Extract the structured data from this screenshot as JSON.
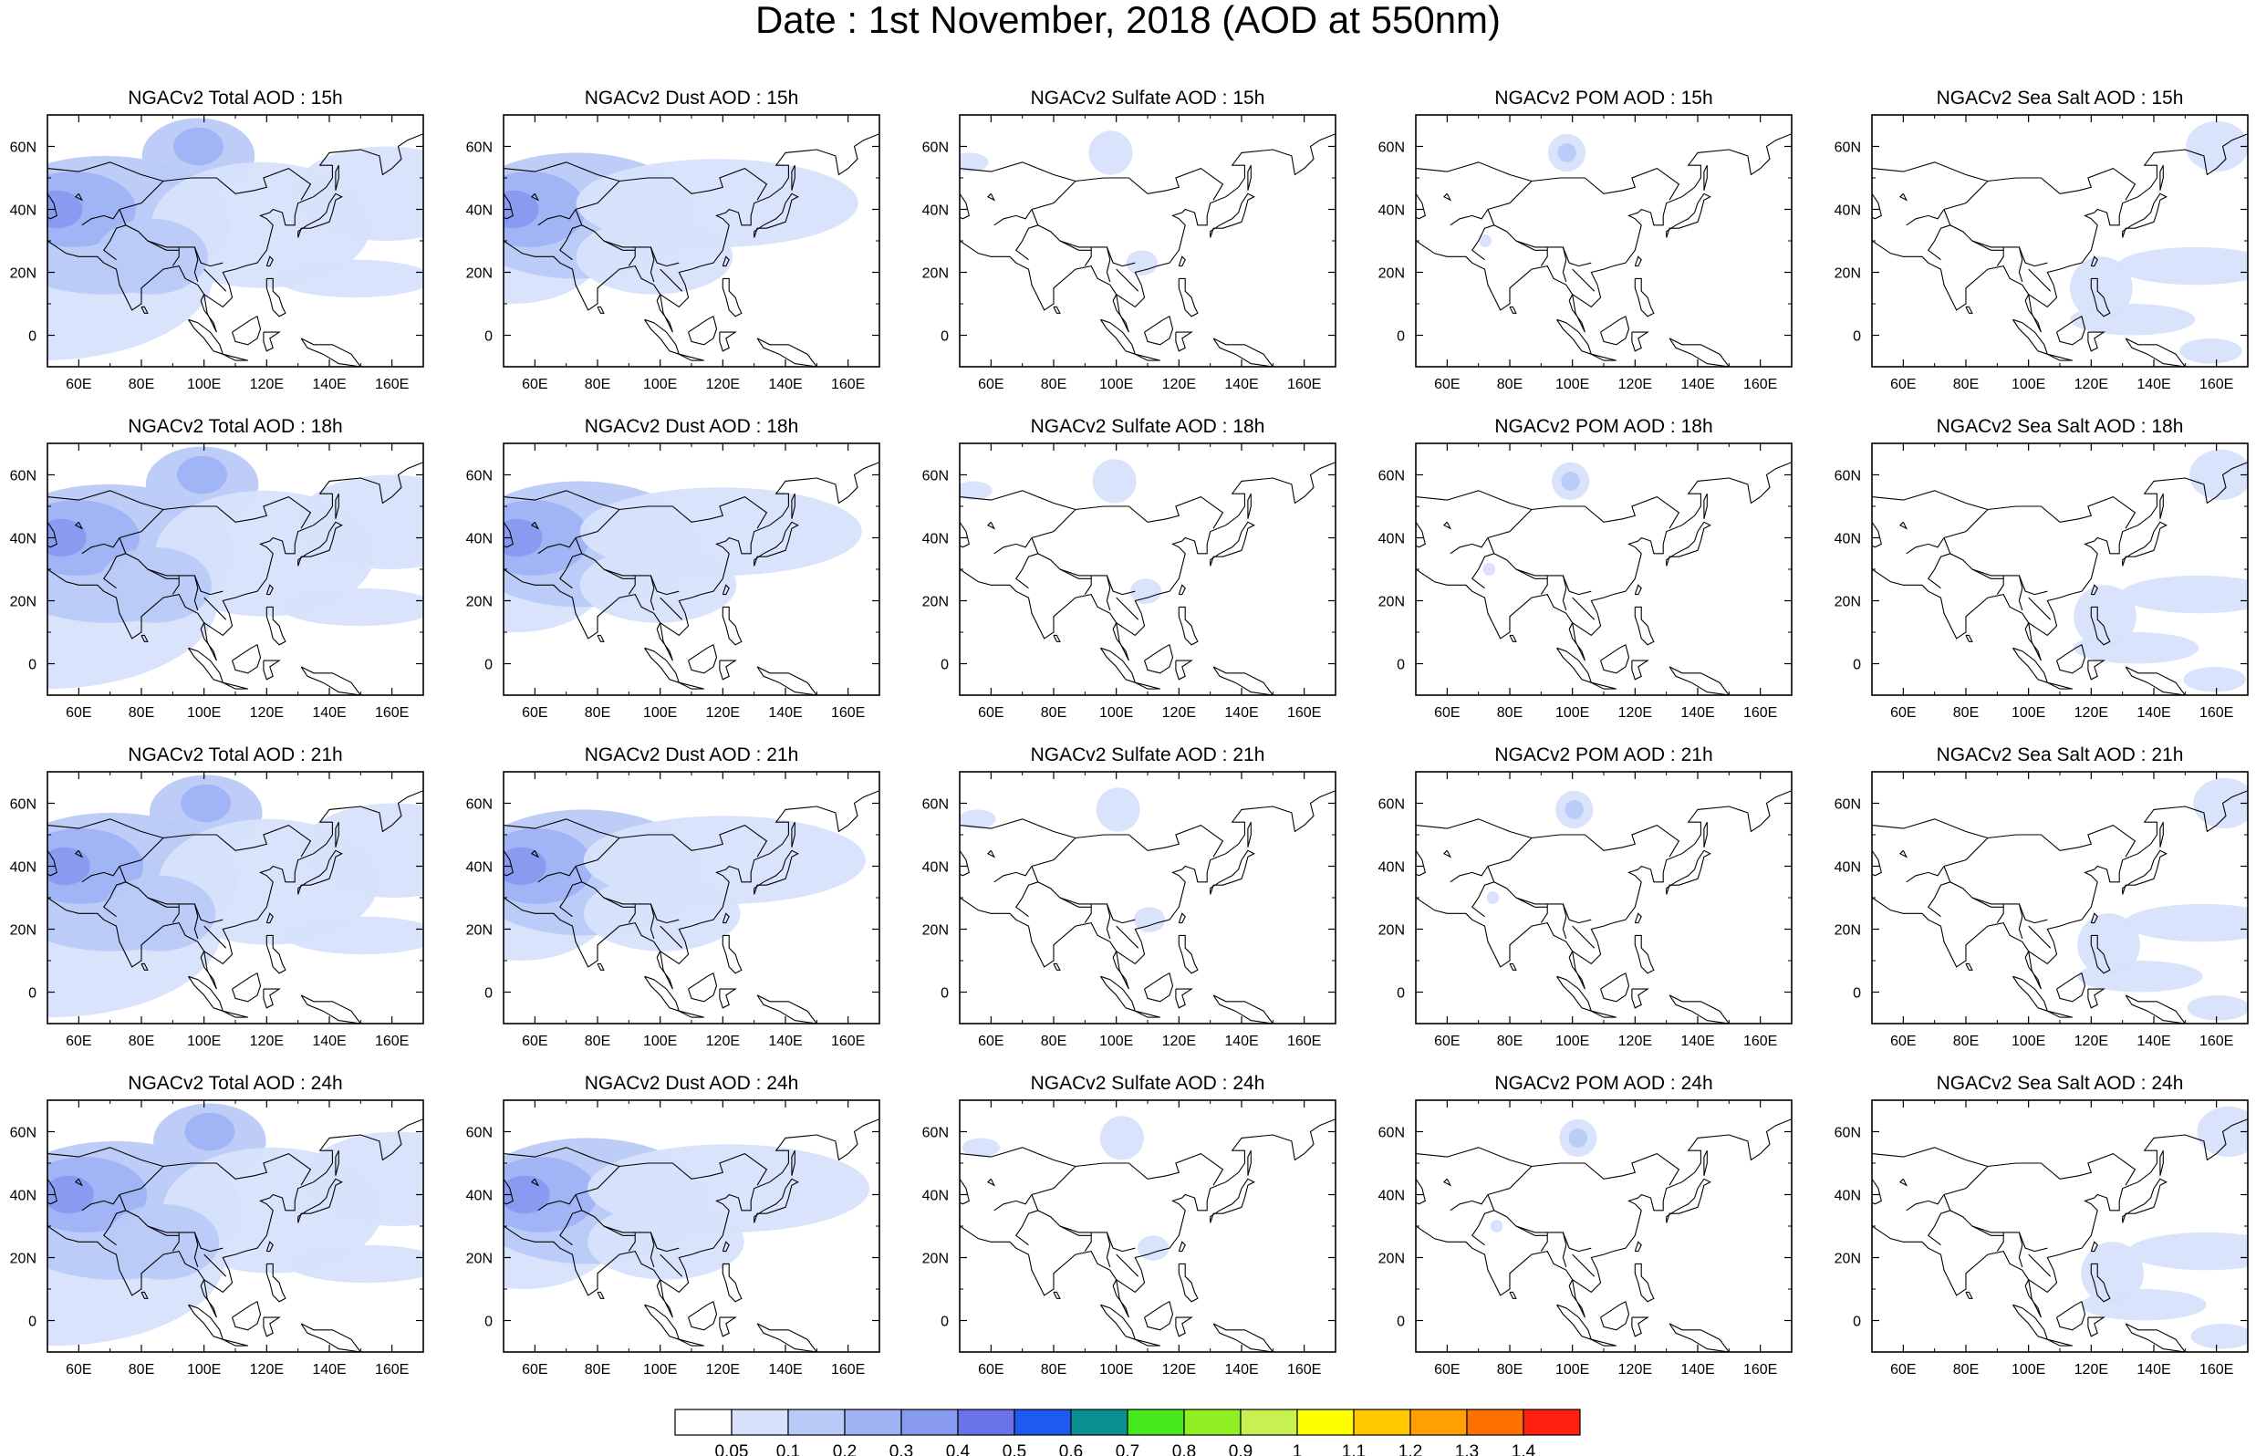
{
  "figure": {
    "title": "Date : 1st November, 2018 (AOD at 550nm)"
  },
  "axes": {
    "x_ticks": [
      "60E",
      "80E",
      "100E",
      "120E",
      "140E",
      "160E"
    ],
    "y_ticks": [
      "60N",
      "40N",
      "20N",
      "0"
    ],
    "lon_range": [
      50,
      170
    ],
    "lat_range": [
      -10,
      70
    ]
  },
  "species": [
    {
      "key": "total",
      "colors": 0
    },
    {
      "key": "dust",
      "colors": 0
    },
    {
      "key": "sulfate",
      "colors": 0
    },
    {
      "key": "pom",
      "colors": 0
    },
    {
      "key": "seasalt",
      "colors": 0
    }
  ],
  "panels": [
    [
      "NGACv2 Total AOD : 15h",
      "NGACv2 Dust AOD : 15h",
      "NGACv2 Sulfate AOD : 15h",
      "NGACv2 POM AOD : 15h",
      "NGACv2 Sea Salt AOD : 15h"
    ],
    [
      "NGACv2 Total AOD : 18h",
      "NGACv2 Dust AOD : 18h",
      "NGACv2 Sulfate AOD : 18h",
      "NGACv2 POM AOD : 18h",
      "NGACv2 Sea Salt AOD : 18h"
    ],
    [
      "NGACv2 Total AOD : 21h",
      "NGACv2 Dust AOD : 21h",
      "NGACv2 Sulfate AOD : 21h",
      "NGACv2 POM AOD : 21h",
      "NGACv2 Sea Salt AOD : 21h"
    ],
    [
      "NGACv2 Total AOD : 24h",
      "NGACv2 Dust AOD : 24h",
      "NGACv2 Sulfate AOD : 24h",
      "NGACv2 POM AOD : 24h",
      "NGACv2 Sea Salt  AOD : 24h"
    ]
  ],
  "colorbar": {
    "labels": [
      "0.05",
      "0.1",
      "0.2",
      "0.3",
      "0.4",
      "0.5",
      "0.6",
      "0.7",
      "0.8",
      "0.9",
      "1",
      "1.1",
      "1.2",
      "1.3",
      "1.4"
    ],
    "colors": [
      "#ffffff",
      "#d7e1fb",
      "#b9caf8",
      "#9fb3f5",
      "#8899f0",
      "#6a72e8",
      "#1e5af0",
      "#0a9090",
      "#48e81e",
      "#90ee22",
      "#c8f050",
      "#ffff00",
      "#ffc800",
      "#ffa000",
      "#ff7000",
      "#ff2010"
    ]
  },
  "plumes": {
    "total": [
      {
        "lon": 50,
        "lat": 20,
        "rx": 55,
        "ry": 28,
        "c": 1
      },
      {
        "lon": 70,
        "lat": 35,
        "rx": 40,
        "ry": 22,
        "c": 2
      },
      {
        "lon": 60,
        "lat": 40,
        "rx": 20,
        "ry": 12,
        "c": 3
      },
      {
        "lon": 55,
        "lat": 40,
        "rx": 8,
        "ry": 6,
        "c": 4
      },
      {
        "lon": 100,
        "lat": 57,
        "rx": 18,
        "ry": 12,
        "c": 2
      },
      {
        "lon": 100,
        "lat": 60,
        "rx": 8,
        "ry": 6,
        "c": 3
      },
      {
        "lon": 120,
        "lat": 35,
        "rx": 35,
        "ry": 20,
        "c": 1
      },
      {
        "lon": 160,
        "lat": 45,
        "rx": 30,
        "ry": 15,
        "c": 1
      },
      {
        "lon": 150,
        "lat": 18,
        "rx": 25,
        "ry": 6,
        "c": 1
      },
      {
        "lon": 85,
        "lat": 25,
        "rx": 18,
        "ry": 12,
        "c": 2
      }
    ],
    "dust": [
      {
        "lon": 55,
        "lat": 30,
        "rx": 30,
        "ry": 20,
        "c": 1
      },
      {
        "lon": 75,
        "lat": 38,
        "rx": 38,
        "ry": 20,
        "c": 2
      },
      {
        "lon": 60,
        "lat": 40,
        "rx": 18,
        "ry": 12,
        "c": 3
      },
      {
        "lon": 55,
        "lat": 40,
        "rx": 8,
        "ry": 6,
        "c": 4
      },
      {
        "lon": 120,
        "lat": 42,
        "rx": 45,
        "ry": 14,
        "c": 1
      },
      {
        "lon": 100,
        "lat": 25,
        "rx": 25,
        "ry": 12,
        "c": 1
      }
    ],
    "sulfate": [
      {
        "lon": 100,
        "lat": 58,
        "rx": 7,
        "ry": 7,
        "c": 1
      },
      {
        "lon": 55,
        "lat": 55,
        "rx": 6,
        "ry": 3,
        "c": 1
      },
      {
        "lon": 110,
        "lat": 23,
        "rx": 5,
        "ry": 4,
        "c": 1
      }
    ],
    "pom": [
      {
        "lon": 100,
        "lat": 58,
        "rx": 6,
        "ry": 6,
        "c": 1
      },
      {
        "lon": 100,
        "lat": 58,
        "rx": 3,
        "ry": 3,
        "c": 2
      },
      {
        "lon": 74,
        "lat": 30,
        "rx": 2,
        "ry": 2,
        "c": 1
      }
    ],
    "seasalt": [
      {
        "lon": 155,
        "lat": 22,
        "rx": 25,
        "ry": 6,
        "c": 1
      },
      {
        "lon": 125,
        "lat": 15,
        "rx": 10,
        "ry": 10,
        "c": 1
      },
      {
        "lon": 162,
        "lat": 60,
        "rx": 10,
        "ry": 8,
        "c": 1
      },
      {
        "lon": 160,
        "lat": -5,
        "rx": 10,
        "ry": 4,
        "c": 1
      },
      {
        "lon": 135,
        "lat": 5,
        "rx": 20,
        "ry": 5,
        "c": 1
      }
    ]
  }
}
